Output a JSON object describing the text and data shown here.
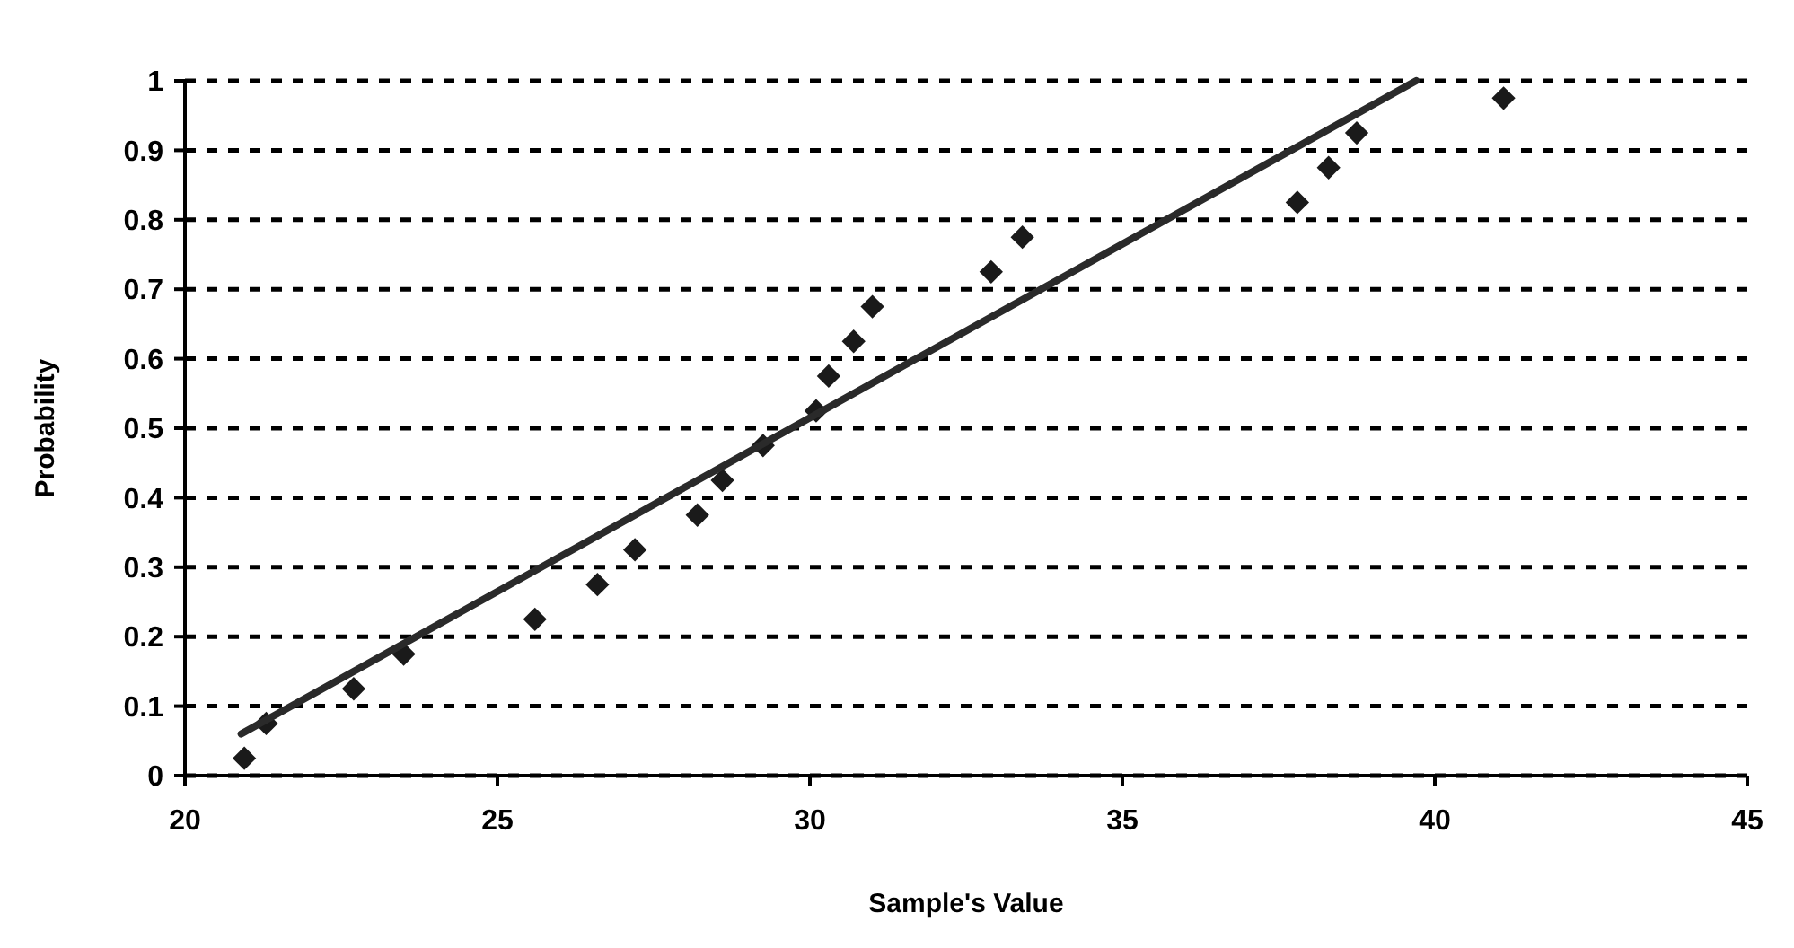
{
  "chart_data": {
    "type": "scatter",
    "xlabel": "Sample's Value",
    "ylabel": "Probability",
    "xlim": [
      20,
      45
    ],
    "xticks": [
      20,
      25,
      30,
      35,
      40,
      45
    ],
    "ylim": [
      0,
      1
    ],
    "yticks": [
      0,
      0.1,
      0.2,
      0.3,
      0.4,
      0.5,
      0.6,
      0.7,
      0.8,
      0.9,
      1
    ],
    "grid": "y",
    "marker": "diamond",
    "series": [
      {
        "color": "#1a1a1a",
        "x": [
          20.95,
          21.3,
          22.7,
          23.5,
          25.6,
          26.6,
          27.2,
          28.2,
          28.6,
          29.25,
          30.1,
          30.3,
          30.7,
          31.0,
          32.9,
          33.4,
          37.8,
          38.3,
          38.75,
          41.1
        ],
        "values": [
          0.025,
          0.075,
          0.125,
          0.175,
          0.225,
          0.275,
          0.325,
          0.375,
          0.425,
          0.475,
          0.525,
          0.575,
          0.625,
          0.675,
          0.725,
          0.775,
          0.825,
          0.875,
          0.925,
          0.975
        ]
      },
      {
        "type": "line",
        "color": "#2a2a2a",
        "marker": "none",
        "x": [
          20.9,
          39.7
        ],
        "values": [
          0.06,
          1.0
        ]
      }
    ]
  }
}
